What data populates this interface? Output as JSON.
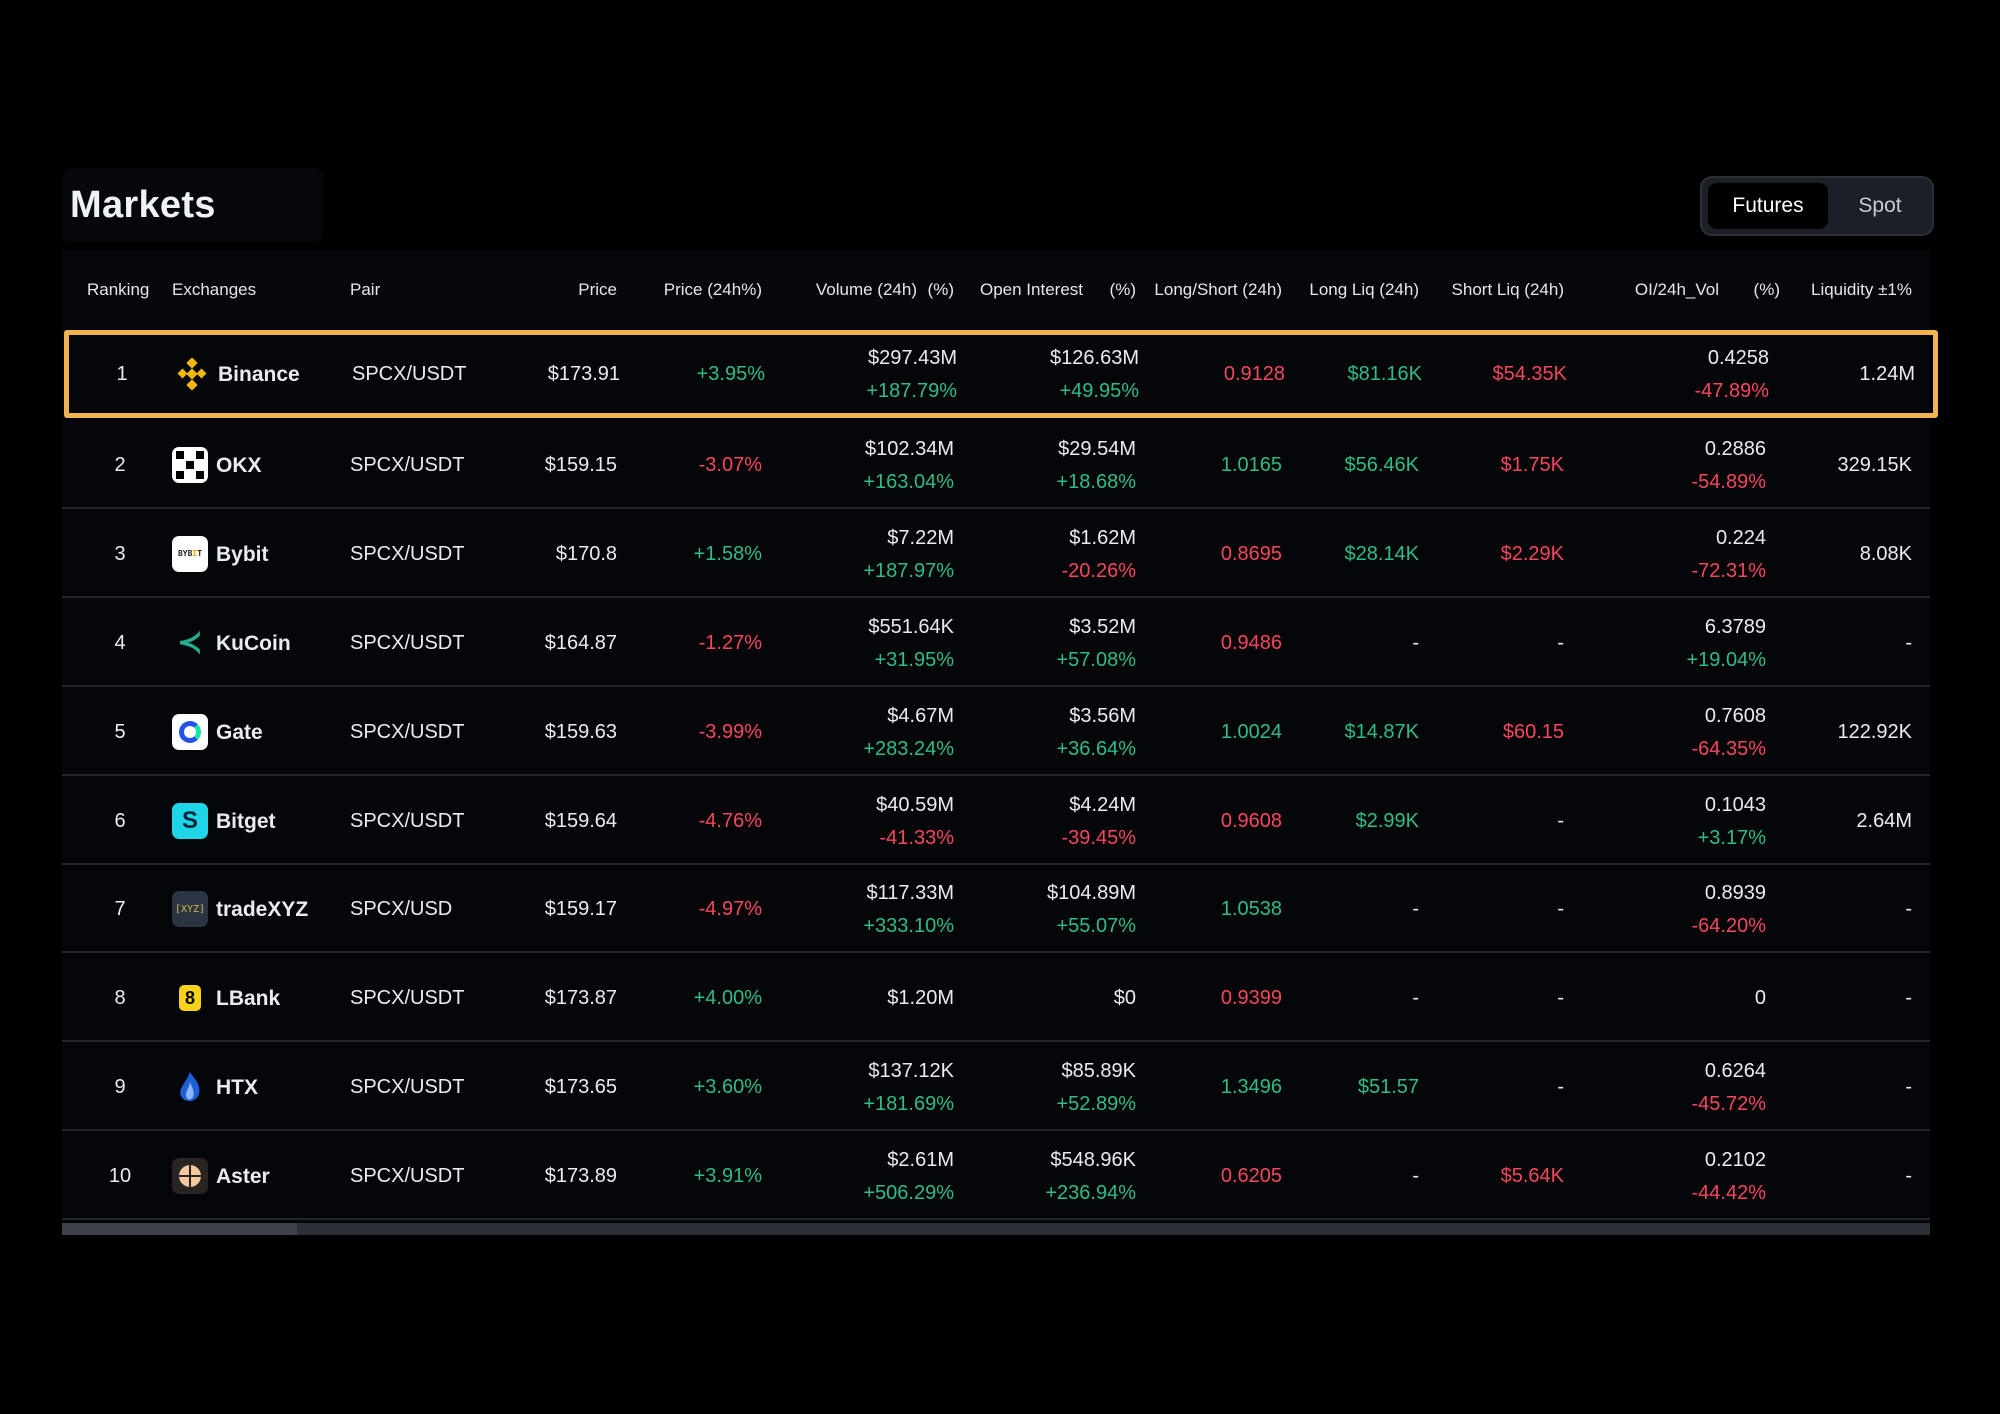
{
  "title": "Markets",
  "toggle": {
    "futures": "Futures",
    "spot": "Spot",
    "active": "Futures"
  },
  "headers": {
    "ranking": "Ranking",
    "exchanges": "Exchanges",
    "pair": "Pair",
    "price": "Price",
    "price_change": "Price (24h%)",
    "volume": "Volume (24h)",
    "volume_pct": "(%)",
    "open_interest": "Open Interest",
    "oi_pct": "(%)",
    "long_short": "Long/Short (24h)",
    "long_liq": "Long Liq (24h)",
    "short_liq": "Short Liq (24h)",
    "oi_vol": "OI/24h_Vol",
    "oi_vol_pct": "(%)",
    "liquidity": "Liquidity ±1%"
  },
  "colors": {
    "positive": "#2ebd85",
    "negative": "#f6465d",
    "highlight": "#f0b34d"
  },
  "rows": [
    {
      "rank": "1",
      "exchange": "Binance",
      "icon": "binance-icon",
      "pair": "SPCX/USDT",
      "price": "$173.91",
      "change": "+3.95%",
      "volume": "$297.43M",
      "volume_change": "+187.79%",
      "oi": "$126.63M",
      "oi_change": "+49.95%",
      "long_short": "0.9128",
      "ls_color": "neg",
      "long_liq": "$81.16K",
      "short_liq": "$54.35K",
      "oi_vol": "0.4258",
      "oi_vol_change": "-47.89%",
      "liquidity": "1.24M",
      "highlighted": true
    },
    {
      "rank": "2",
      "exchange": "OKX",
      "icon": "okx-icon",
      "pair": "SPCX/USDT",
      "price": "$159.15",
      "change": "-3.07%",
      "volume": "$102.34M",
      "volume_change": "+163.04%",
      "oi": "$29.54M",
      "oi_change": "+18.68%",
      "long_short": "1.0165",
      "ls_color": "pos",
      "long_liq": "$56.46K",
      "short_liq": "$1.75K",
      "oi_vol": "0.2886",
      "oi_vol_change": "-54.89%",
      "liquidity": "329.15K"
    },
    {
      "rank": "3",
      "exchange": "Bybit",
      "icon": "bybit-icon",
      "pair": "SPCX/USDT",
      "price": "$170.8",
      "change": "+1.58%",
      "volume": "$7.22M",
      "volume_change": "+187.97%",
      "oi": "$1.62M",
      "oi_change": "-20.26%",
      "long_short": "0.8695",
      "ls_color": "neg",
      "long_liq": "$28.14K",
      "short_liq": "$2.29K",
      "oi_vol": "0.224",
      "oi_vol_change": "-72.31%",
      "liquidity": "8.08K"
    },
    {
      "rank": "4",
      "exchange": "KuCoin",
      "icon": "kucoin-icon",
      "pair": "SPCX/USDT",
      "price": "$164.87",
      "change": "-1.27%",
      "volume": "$551.64K",
      "volume_change": "+31.95%",
      "oi": "$3.52M",
      "oi_change": "+57.08%",
      "long_short": "0.9486",
      "ls_color": "neg",
      "long_liq": "-",
      "short_liq": "-",
      "oi_vol": "6.3789",
      "oi_vol_change": "+19.04%",
      "liquidity": "-"
    },
    {
      "rank": "5",
      "exchange": "Gate",
      "icon": "gate-icon",
      "pair": "SPCX/USDT",
      "price": "$159.63",
      "change": "-3.99%",
      "volume": "$4.67M",
      "volume_change": "+283.24%",
      "oi": "$3.56M",
      "oi_change": "+36.64%",
      "long_short": "1.0024",
      "ls_color": "pos",
      "long_liq": "$14.87K",
      "short_liq": "$60.15",
      "oi_vol": "0.7608",
      "oi_vol_change": "-64.35%",
      "liquidity": "122.92K"
    },
    {
      "rank": "6",
      "exchange": "Bitget",
      "icon": "bitget-icon",
      "pair": "SPCX/USDT",
      "price": "$159.64",
      "change": "-4.76%",
      "volume": "$40.59M",
      "volume_change": "-41.33%",
      "oi": "$4.24M",
      "oi_change": "-39.45%",
      "long_short": "0.9608",
      "ls_color": "neg",
      "long_liq": "$2.99K",
      "short_liq": "-",
      "oi_vol": "0.1043",
      "oi_vol_change": "+3.17%",
      "liquidity": "2.64M"
    },
    {
      "rank": "7",
      "exchange": "tradeXYZ",
      "icon": "tradexyz-icon",
      "pair": "SPCX/USD",
      "price": "$159.17",
      "change": "-4.97%",
      "volume": "$117.33M",
      "volume_change": "+333.10%",
      "oi": "$104.89M",
      "oi_change": "+55.07%",
      "long_short": "1.0538",
      "ls_color": "pos",
      "long_liq": "-",
      "short_liq": "-",
      "oi_vol": "0.8939",
      "oi_vol_change": "-64.20%",
      "liquidity": "-"
    },
    {
      "rank": "8",
      "exchange": "LBank",
      "icon": "lbank-icon",
      "pair": "SPCX/USDT",
      "price": "$173.87",
      "change": "+4.00%",
      "volume": "$1.20M",
      "volume_change": "",
      "oi": "$0",
      "oi_change": "",
      "long_short": "0.9399",
      "ls_color": "neg",
      "long_liq": "-",
      "short_liq": "-",
      "oi_vol": "0",
      "oi_vol_change": "",
      "liquidity": "-"
    },
    {
      "rank": "9",
      "exchange": "HTX",
      "icon": "htx-icon",
      "pair": "SPCX/USDT",
      "price": "$173.65",
      "change": "+3.60%",
      "volume": "$137.12K",
      "volume_change": "+181.69%",
      "oi": "$85.89K",
      "oi_change": "+52.89%",
      "long_short": "1.3496",
      "ls_color": "pos",
      "long_liq": "$51.57",
      "short_liq": "-",
      "oi_vol": "0.6264",
      "oi_vol_change": "-45.72%",
      "liquidity": "-"
    },
    {
      "rank": "10",
      "exchange": "Aster",
      "icon": "aster-icon",
      "pair": "SPCX/USDT",
      "price": "$173.89",
      "change": "+3.91%",
      "volume": "$2.61M",
      "volume_change": "+506.29%",
      "oi": "$548.96K",
      "oi_change": "+236.94%",
      "long_short": "0.6205",
      "ls_color": "neg",
      "long_liq": "-",
      "short_liq": "$5.64K",
      "oi_vol": "0.2102",
      "oi_vol_change": "-44.42%",
      "liquidity": "-"
    }
  ]
}
